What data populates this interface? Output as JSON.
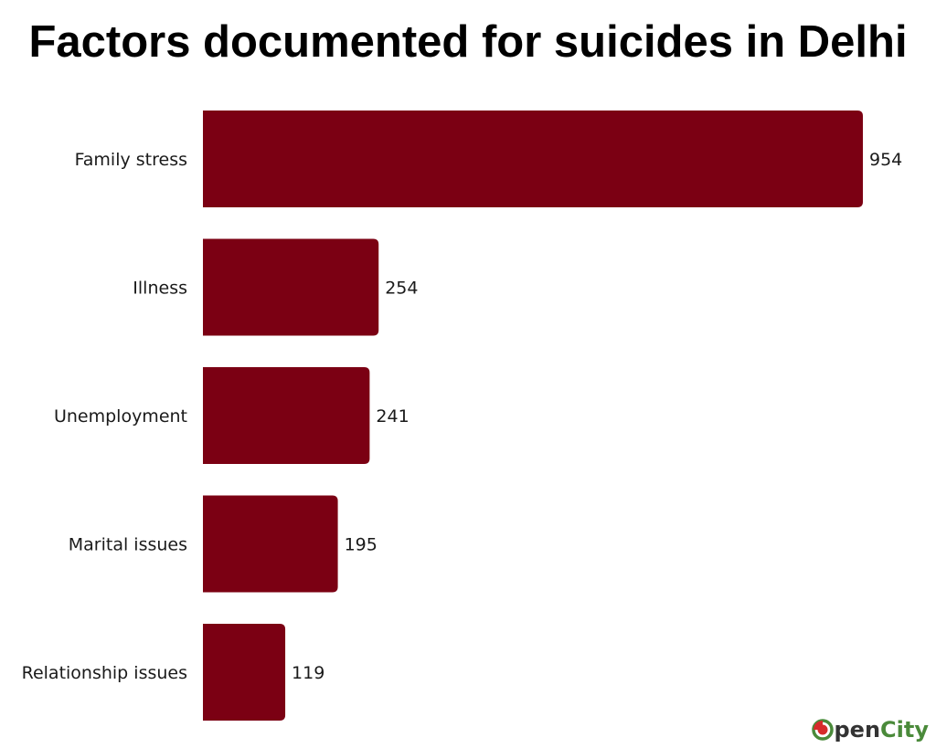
{
  "chart_data": {
    "type": "bar",
    "orientation": "horizontal",
    "title": "Factors documented for suicides in Delhi",
    "categories": [
      "Family stress",
      "Illness",
      "Unemployment",
      "Marital issues",
      "Relationship issues"
    ],
    "values": [
      954,
      254,
      241,
      195,
      119
    ],
    "xlabel": "",
    "ylabel": "",
    "grid": false,
    "bar_color": "#7b0013"
  },
  "logo": {
    "text": "OpenCity",
    "colors": [
      "#d62b2b",
      "#4a8a3a"
    ]
  }
}
